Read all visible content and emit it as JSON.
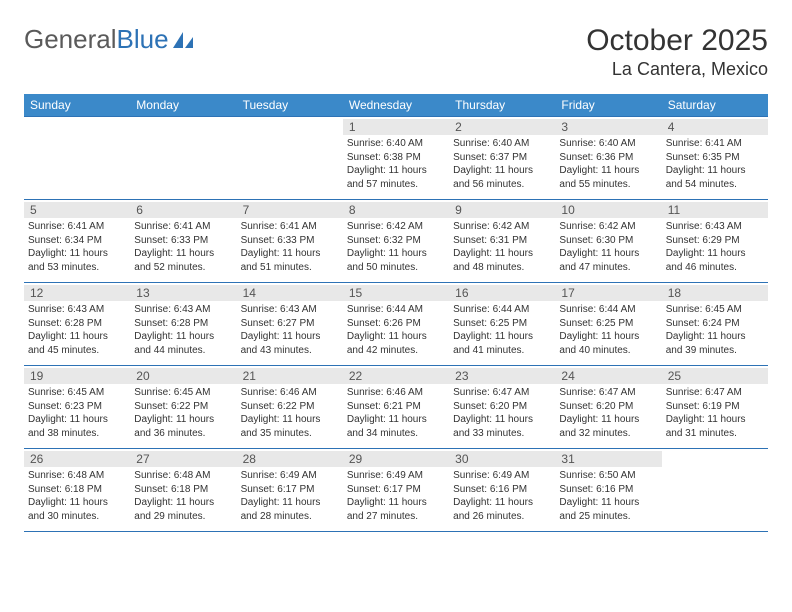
{
  "brand": {
    "part1": "General",
    "part2": "Blue"
  },
  "title": "October 2025",
  "location": "La Cantera, Mexico",
  "colors": {
    "header_bg": "#3b89c9",
    "header_text": "#ffffff",
    "rule": "#2d72b5",
    "daynum_bg": "#e8e8e8",
    "body_text": "#333333"
  },
  "day_names": [
    "Sunday",
    "Monday",
    "Tuesday",
    "Wednesday",
    "Thursday",
    "Friday",
    "Saturday"
  ],
  "weeks": [
    [
      {
        "day": null
      },
      {
        "day": null
      },
      {
        "day": null
      },
      {
        "day": "1",
        "sunrise": "6:40 AM",
        "sunset": "6:38 PM",
        "daylight": "11 hours and 57 minutes."
      },
      {
        "day": "2",
        "sunrise": "6:40 AM",
        "sunset": "6:37 PM",
        "daylight": "11 hours and 56 minutes."
      },
      {
        "day": "3",
        "sunrise": "6:40 AM",
        "sunset": "6:36 PM",
        "daylight": "11 hours and 55 minutes."
      },
      {
        "day": "4",
        "sunrise": "6:41 AM",
        "sunset": "6:35 PM",
        "daylight": "11 hours and 54 minutes."
      }
    ],
    [
      {
        "day": "5",
        "sunrise": "6:41 AM",
        "sunset": "6:34 PM",
        "daylight": "11 hours and 53 minutes."
      },
      {
        "day": "6",
        "sunrise": "6:41 AM",
        "sunset": "6:33 PM",
        "daylight": "11 hours and 52 minutes."
      },
      {
        "day": "7",
        "sunrise": "6:41 AM",
        "sunset": "6:33 PM",
        "daylight": "11 hours and 51 minutes."
      },
      {
        "day": "8",
        "sunrise": "6:42 AM",
        "sunset": "6:32 PM",
        "daylight": "11 hours and 50 minutes."
      },
      {
        "day": "9",
        "sunrise": "6:42 AM",
        "sunset": "6:31 PM",
        "daylight": "11 hours and 48 minutes."
      },
      {
        "day": "10",
        "sunrise": "6:42 AM",
        "sunset": "6:30 PM",
        "daylight": "11 hours and 47 minutes."
      },
      {
        "day": "11",
        "sunrise": "6:43 AM",
        "sunset": "6:29 PM",
        "daylight": "11 hours and 46 minutes."
      }
    ],
    [
      {
        "day": "12",
        "sunrise": "6:43 AM",
        "sunset": "6:28 PM",
        "daylight": "11 hours and 45 minutes."
      },
      {
        "day": "13",
        "sunrise": "6:43 AM",
        "sunset": "6:28 PM",
        "daylight": "11 hours and 44 minutes."
      },
      {
        "day": "14",
        "sunrise": "6:43 AM",
        "sunset": "6:27 PM",
        "daylight": "11 hours and 43 minutes."
      },
      {
        "day": "15",
        "sunrise": "6:44 AM",
        "sunset": "6:26 PM",
        "daylight": "11 hours and 42 minutes."
      },
      {
        "day": "16",
        "sunrise": "6:44 AM",
        "sunset": "6:25 PM",
        "daylight": "11 hours and 41 minutes."
      },
      {
        "day": "17",
        "sunrise": "6:44 AM",
        "sunset": "6:25 PM",
        "daylight": "11 hours and 40 minutes."
      },
      {
        "day": "18",
        "sunrise": "6:45 AM",
        "sunset": "6:24 PM",
        "daylight": "11 hours and 39 minutes."
      }
    ],
    [
      {
        "day": "19",
        "sunrise": "6:45 AM",
        "sunset": "6:23 PM",
        "daylight": "11 hours and 38 minutes."
      },
      {
        "day": "20",
        "sunrise": "6:45 AM",
        "sunset": "6:22 PM",
        "daylight": "11 hours and 36 minutes."
      },
      {
        "day": "21",
        "sunrise": "6:46 AM",
        "sunset": "6:22 PM",
        "daylight": "11 hours and 35 minutes."
      },
      {
        "day": "22",
        "sunrise": "6:46 AM",
        "sunset": "6:21 PM",
        "daylight": "11 hours and 34 minutes."
      },
      {
        "day": "23",
        "sunrise": "6:47 AM",
        "sunset": "6:20 PM",
        "daylight": "11 hours and 33 minutes."
      },
      {
        "day": "24",
        "sunrise": "6:47 AM",
        "sunset": "6:20 PM",
        "daylight": "11 hours and 32 minutes."
      },
      {
        "day": "25",
        "sunrise": "6:47 AM",
        "sunset": "6:19 PM",
        "daylight": "11 hours and 31 minutes."
      }
    ],
    [
      {
        "day": "26",
        "sunrise": "6:48 AM",
        "sunset": "6:18 PM",
        "daylight": "11 hours and 30 minutes."
      },
      {
        "day": "27",
        "sunrise": "6:48 AM",
        "sunset": "6:18 PM",
        "daylight": "11 hours and 29 minutes."
      },
      {
        "day": "28",
        "sunrise": "6:49 AM",
        "sunset": "6:17 PM",
        "daylight": "11 hours and 28 minutes."
      },
      {
        "day": "29",
        "sunrise": "6:49 AM",
        "sunset": "6:17 PM",
        "daylight": "11 hours and 27 minutes."
      },
      {
        "day": "30",
        "sunrise": "6:49 AM",
        "sunset": "6:16 PM",
        "daylight": "11 hours and 26 minutes."
      },
      {
        "day": "31",
        "sunrise": "6:50 AM",
        "sunset": "6:16 PM",
        "daylight": "11 hours and 25 minutes."
      },
      {
        "day": null
      }
    ]
  ],
  "labels": {
    "sunrise": "Sunrise:",
    "sunset": "Sunset:",
    "daylight": "Daylight:"
  }
}
